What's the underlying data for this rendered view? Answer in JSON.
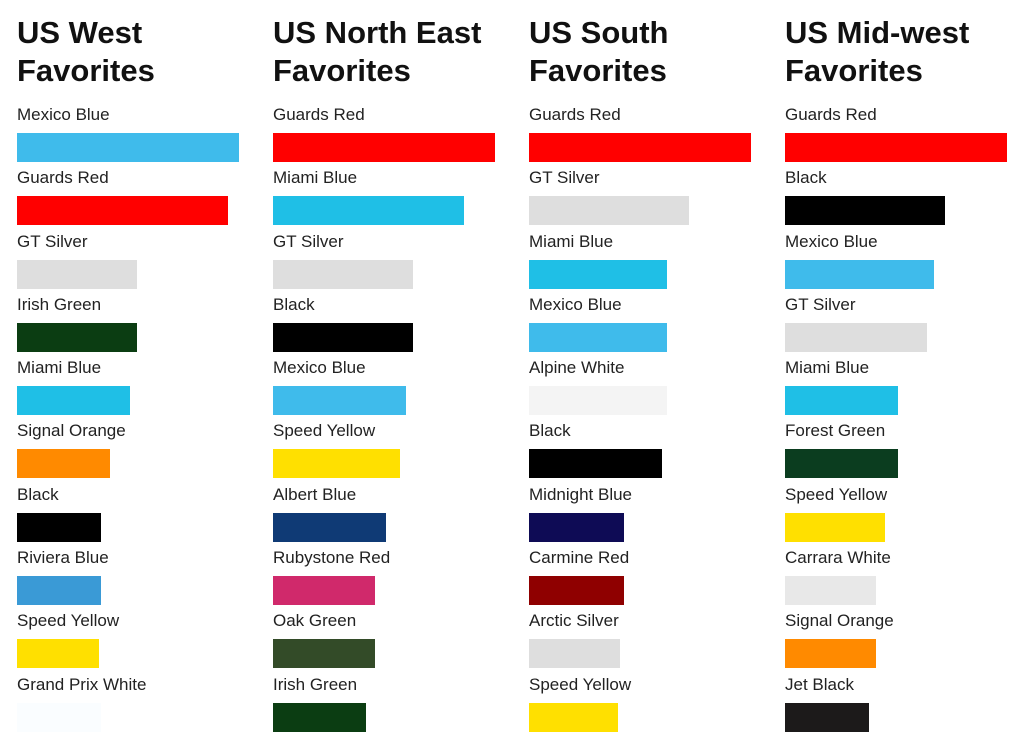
{
  "chart_data": [
    {
      "type": "bar",
      "orientation": "horizontal",
      "title": "US West Favorites",
      "categories": [
        "Mexico Blue",
        "Guards Red",
        "GT Silver",
        "Irish Green",
        "Miami Blue",
        "Signal Orange",
        "Black",
        "Riviera Blue",
        "Speed Yellow",
        "Grand Prix White"
      ],
      "values": [
        100,
        95,
        54,
        54,
        51,
        42,
        38,
        38,
        37,
        38
      ],
      "colors": [
        "#3fbbeb",
        "#ff0000",
        "#dedede",
        "#0b3d12",
        "#1fbfe6",
        "#ff8a00",
        "#000000",
        "#3a9ad6",
        "#ffe000",
        "#fafdff"
      ],
      "xlim": [
        0,
        100
      ]
    },
    {
      "type": "bar",
      "orientation": "horizontal",
      "title": "US North East Favorites",
      "categories": [
        "Guards Red",
        "Miami Blue",
        "GT Silver",
        "Black",
        "Mexico Blue",
        "Speed Yellow",
        "Albert Blue",
        "Rubystone Red",
        "Oak Green",
        "Irish Green"
      ],
      "values": [
        100,
        86,
        63,
        63,
        60,
        57,
        51,
        46,
        46,
        42
      ],
      "colors": [
        "#ff0000",
        "#1fbfe6",
        "#dedede",
        "#000000",
        "#3fbbeb",
        "#ffe000",
        "#0f3a75",
        "#d0296b",
        "#334b28",
        "#0b3d12"
      ],
      "xlim": [
        0,
        100
      ]
    },
    {
      "type": "bar",
      "orientation": "horizontal",
      "title": "US South Favorites",
      "categories": [
        "Guards Red",
        "GT Silver",
        "Miami Blue",
        "Mexico Blue",
        "Alpine White",
        "Black",
        "Midnight Blue",
        "Carmine Red",
        "Arctic Silver",
        "Speed Yellow"
      ],
      "values": [
        100,
        72,
        62,
        62,
        62,
        60,
        43,
        43,
        41,
        40
      ],
      "colors": [
        "#ff0000",
        "#dedede",
        "#1fbfe6",
        "#3fbbeb",
        "#f4f4f4",
        "#000000",
        "#0e0b55",
        "#8f0000",
        "#dedede",
        "#ffe000"
      ],
      "xlim": [
        0,
        100
      ]
    },
    {
      "type": "bar",
      "orientation": "horizontal",
      "title": "US Mid-west Favorites",
      "categories": [
        "Guards Red",
        "Black",
        "Mexico Blue",
        "GT Silver",
        "Miami Blue",
        "Forest Green",
        "Speed Yellow",
        "Carrara White",
        "Signal Orange",
        "Jet Black"
      ],
      "values": [
        100,
        72,
        67,
        64,
        51,
        51,
        45,
        41,
        41,
        38
      ],
      "colors": [
        "#ff0000",
        "#000000",
        "#3fbbeb",
        "#dedede",
        "#1fbfe6",
        "#0b3d1f",
        "#ffe000",
        "#e8e8e8",
        "#ff8a00",
        "#1c1a1a"
      ],
      "xlim": [
        0,
        100
      ]
    }
  ]
}
